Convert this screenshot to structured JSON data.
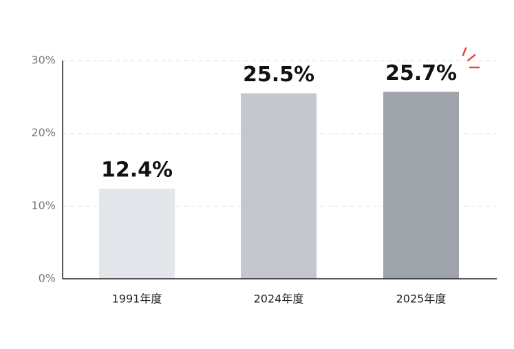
{
  "chart_data": {
    "type": "bar",
    "categories": [
      "1991年度",
      "2024年度",
      "2025年度"
    ],
    "values": [
      12.4,
      25.5,
      25.7
    ],
    "value_labels": [
      "12.4%",
      "25.5%",
      "25.7%"
    ],
    "colors": [
      "#e3e6ea",
      "#c4c8ce",
      "#9fa3aa"
    ],
    "ylim": [
      0,
      30
    ],
    "yticks": [
      {
        "value": 0,
        "label": "0%"
      },
      {
        "value": 10,
        "label": "10%"
      },
      {
        "value": 20,
        "label": "20%"
      },
      {
        "value": 30,
        "label": "30%"
      }
    ],
    "grid": true
  }
}
